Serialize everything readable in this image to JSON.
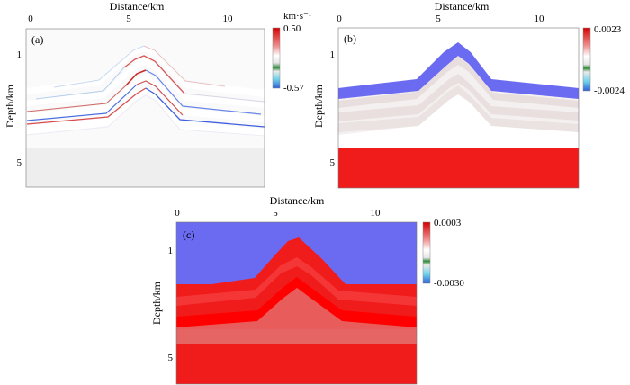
{
  "panels": [
    {
      "label": "(a)",
      "title": "Distance/km",
      "ylabel": "Depth/km",
      "xticks": [
        "0",
        "5",
        "10"
      ],
      "yticks": [
        "1",
        "5"
      ],
      "colorbar": {
        "max": "0.50",
        "min": "-0.57",
        "unit": "km·s⁻¹"
      }
    },
    {
      "label": "(b)",
      "title": "Distance/km",
      "ylabel": "Depth/km",
      "xticks": [
        "0",
        "5",
        "10"
      ],
      "yticks": [
        "1",
        "5"
      ],
      "colorbar": {
        "max": "0.0023",
        "min": "-0.0024",
        "unit": ""
      }
    },
    {
      "label": "(c)",
      "title": "Distance/km",
      "ylabel": "Depth/km",
      "xticks": [
        "0",
        "5",
        "10"
      ],
      "yticks": [
        "1",
        "5"
      ],
      "colorbar": {
        "max": "0.0003",
        "min": "-0.0030",
        "unit": ""
      }
    }
  ],
  "colors": {
    "red": "#f01c1c",
    "blue": "#6f6ff5",
    "lightGray": "#f2f2f2",
    "faintRed": "#e9dede"
  }
}
